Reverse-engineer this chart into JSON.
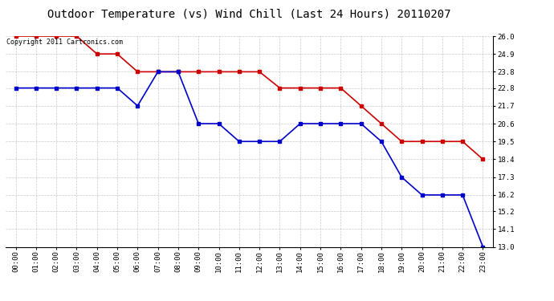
{
  "title": "Outdoor Temperature (vs) Wind Chill (Last 24 Hours) 20110207",
  "copyright_text": "Copyright 2011 Cartronics.com",
  "x_labels": [
    "00:00",
    "01:00",
    "02:00",
    "03:00",
    "04:00",
    "05:00",
    "06:00",
    "07:00",
    "08:00",
    "09:00",
    "10:00",
    "11:00",
    "12:00",
    "13:00",
    "14:00",
    "15:00",
    "16:00",
    "17:00",
    "18:00",
    "19:00",
    "20:00",
    "21:00",
    "22:00",
    "23:00"
  ],
  "red_data": [
    26.0,
    26.0,
    26.0,
    26.0,
    24.9,
    24.9,
    23.8,
    23.8,
    23.8,
    23.8,
    23.8,
    23.8,
    23.8,
    22.8,
    22.8,
    22.8,
    22.8,
    21.7,
    20.6,
    19.5,
    19.5,
    19.5,
    19.5,
    18.4
  ],
  "blue_data": [
    22.8,
    22.8,
    22.8,
    22.8,
    22.8,
    22.8,
    21.7,
    23.8,
    23.8,
    20.6,
    20.6,
    19.5,
    19.5,
    19.5,
    20.6,
    20.6,
    20.6,
    20.6,
    19.5,
    17.3,
    16.2,
    16.2,
    16.2,
    13.0
  ],
  "red_color": "#cc0000",
  "blue_color": "#0000cc",
  "ylim_min": 13.0,
  "ylim_max": 26.0,
  "yticks": [
    13.0,
    14.1,
    15.2,
    16.2,
    17.3,
    18.4,
    19.5,
    20.6,
    21.7,
    22.8,
    23.8,
    24.9,
    26.0
  ],
  "bg_color": "#ffffff",
  "grid_color": "#bbbbbb",
  "title_fontsize": 10,
  "copyright_fontsize": 6,
  "tick_fontsize": 6.5,
  "marker_size": 3
}
